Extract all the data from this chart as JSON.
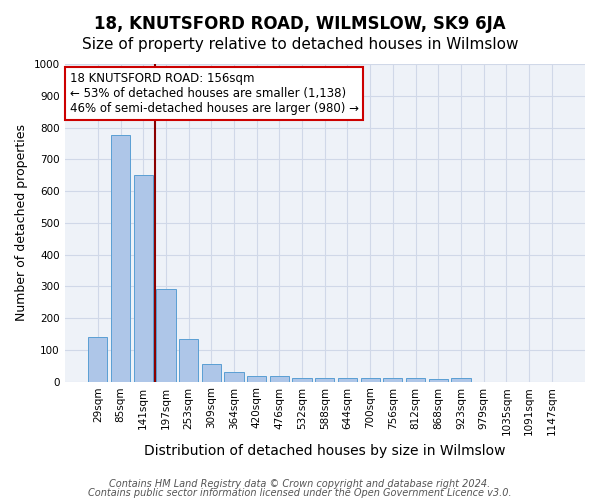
{
  "title": "18, KNUTSFORD ROAD, WILMSLOW, SK9 6JA",
  "subtitle": "Size of property relative to detached houses in Wilmslow",
  "xlabel": "Distribution of detached houses by size in Wilmslow",
  "ylabel": "Number of detached properties",
  "bar_values": [
    140,
    775,
    650,
    290,
    135,
    55,
    30,
    18,
    18,
    10,
    10,
    10,
    10,
    10,
    10,
    8,
    10,
    0,
    0,
    0,
    0
  ],
  "bar_labels": [
    "29sqm",
    "85sqm",
    "141sqm",
    "197sqm",
    "253sqm",
    "309sqm",
    "364sqm",
    "420sqm",
    "476sqm",
    "532sqm",
    "588sqm",
    "644sqm",
    "700sqm",
    "756sqm",
    "812sqm",
    "868sqm",
    "923sqm",
    "979sqm",
    "1035sqm",
    "1091sqm",
    "1147sqm"
  ],
  "bar_color": "#aec6e8",
  "bar_edge_color": "#5a9fd4",
  "ylim": [
    0,
    1000
  ],
  "yticks": [
    0,
    100,
    200,
    300,
    400,
    500,
    600,
    700,
    800,
    900,
    1000
  ],
  "property_line_x": 2.5,
  "property_line_color": "#8b0000",
  "annotation_text": "18 KNUTSFORD ROAD: 156sqm\n← 53% of detached houses are smaller (1,138)\n46% of semi-detached houses are larger (980) →",
  "annotation_box_color": "#ffffff",
  "annotation_box_edge_color": "#cc0000",
  "grid_color": "#d0d8e8",
  "background_color": "#eef2f8",
  "footer_line1": "Contains HM Land Registry data © Crown copyright and database right 2024.",
  "footer_line2": "Contains public sector information licensed under the Open Government Licence v3.0.",
  "title_fontsize": 12,
  "subtitle_fontsize": 11,
  "xlabel_fontsize": 10,
  "ylabel_fontsize": 9,
  "tick_fontsize": 7.5,
  "footer_fontsize": 7,
  "annotation_fontsize": 8.5
}
